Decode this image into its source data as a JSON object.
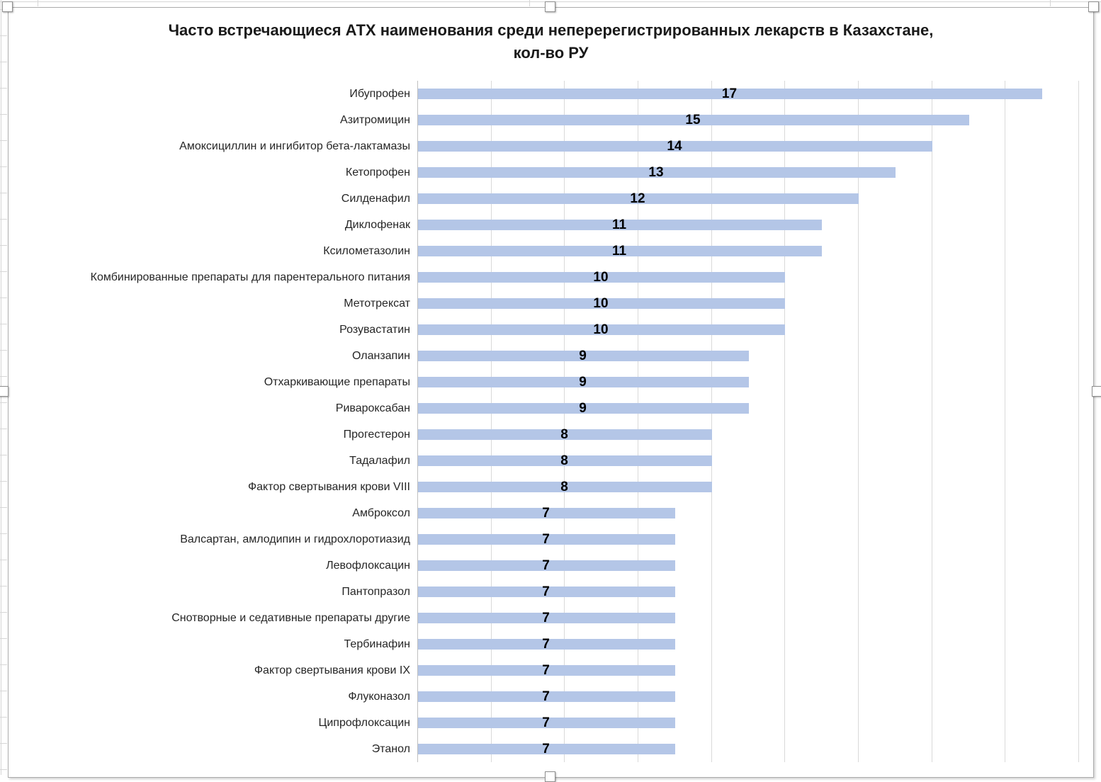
{
  "header": {
    "title_line1": "Часто встречающиеся АТХ наименования среди неперерегистрированных лекарств в Казахстане,",
    "title_line2": "кол-во РУ"
  },
  "chart_data": {
    "type": "bar",
    "orientation": "horizontal",
    "title": "Часто встречающиеся АТХ наименования среди неперерегистрированных лекарств в Казахстане, кол-во РУ",
    "categories": [
      "Ибупрофен",
      "Азитромицин",
      "Амоксициллин и ингибитор бета-лактамазы",
      "Кетопрофен",
      "Силденафил",
      "Диклофенак",
      "Ксилометазолин",
      "Комбинированные препараты для парентерального питания",
      "Метотрексат",
      "Розувастатин",
      "Оланзапин",
      "Отхаркивающие препараты",
      "Ривароксабан",
      "Прогестерон",
      "Тадалафил",
      "Фактор свертывания крови VIII",
      "Амброксол",
      "Валсартан, амлодипин и гидрохлоротиазид",
      "Левофлоксацин",
      "Пантопразол",
      "Снотворные и седативные препараты другие",
      "Тербинафин",
      "Фактор свертывания крови IX",
      "Флуконазол",
      "Ципрофлоксацин",
      "Этанол"
    ],
    "values": [
      17,
      15,
      14,
      13,
      12,
      11,
      11,
      10,
      10,
      10,
      9,
      9,
      9,
      8,
      8,
      8,
      7,
      7,
      7,
      7,
      7,
      7,
      7,
      7,
      7,
      7
    ],
    "xlabel": "",
    "ylabel": "",
    "xlim": [
      0,
      18
    ],
    "grid_step": 2,
    "grid": true,
    "legend": false,
    "data_labels_position": "center",
    "value_axis_tick_labels_visible": false,
    "bar_color": "#B4C6E7",
    "gridline_color": "#D9D9D9",
    "axis_line_color": "#BFBFBF",
    "label_color": "#262626",
    "value_label_color": "#000000",
    "title_color": "#1A1A1A"
  }
}
